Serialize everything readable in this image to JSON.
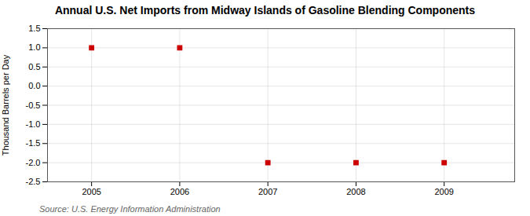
{
  "chart_data": {
    "type": "scatter",
    "title": "Annual U.S. Net Imports from Midway Islands of Gasoline Blending Components",
    "ylabel": "Thousand Barrels per Day",
    "annotations": [
      "Source: U.S. Energy Information Administration"
    ],
    "x": [
      2005,
      2006,
      2007,
      2008,
      2009
    ],
    "values": [
      1,
      1,
      -2,
      -2,
      -2
    ],
    "color": "#CC0000",
    "marker": "square",
    "xlim": [
      2004.5,
      2009.8
    ],
    "ylim": [
      -2.5,
      1.5
    ],
    "xticks": [
      2005,
      2006,
      2007,
      2008,
      2009
    ],
    "yticks": [
      -2.5,
      {
        "value": -2.0,
        "label": "-2.0"
      },
      -1.5,
      {
        "value": -1.0,
        "label": "-1.0"
      },
      -0.5,
      {
        "value": 0.0,
        "label": "0.0"
      },
      0.5,
      {
        "value": 1.0,
        "label": "1.0"
      },
      1.5
    ],
    "grid": true
  }
}
